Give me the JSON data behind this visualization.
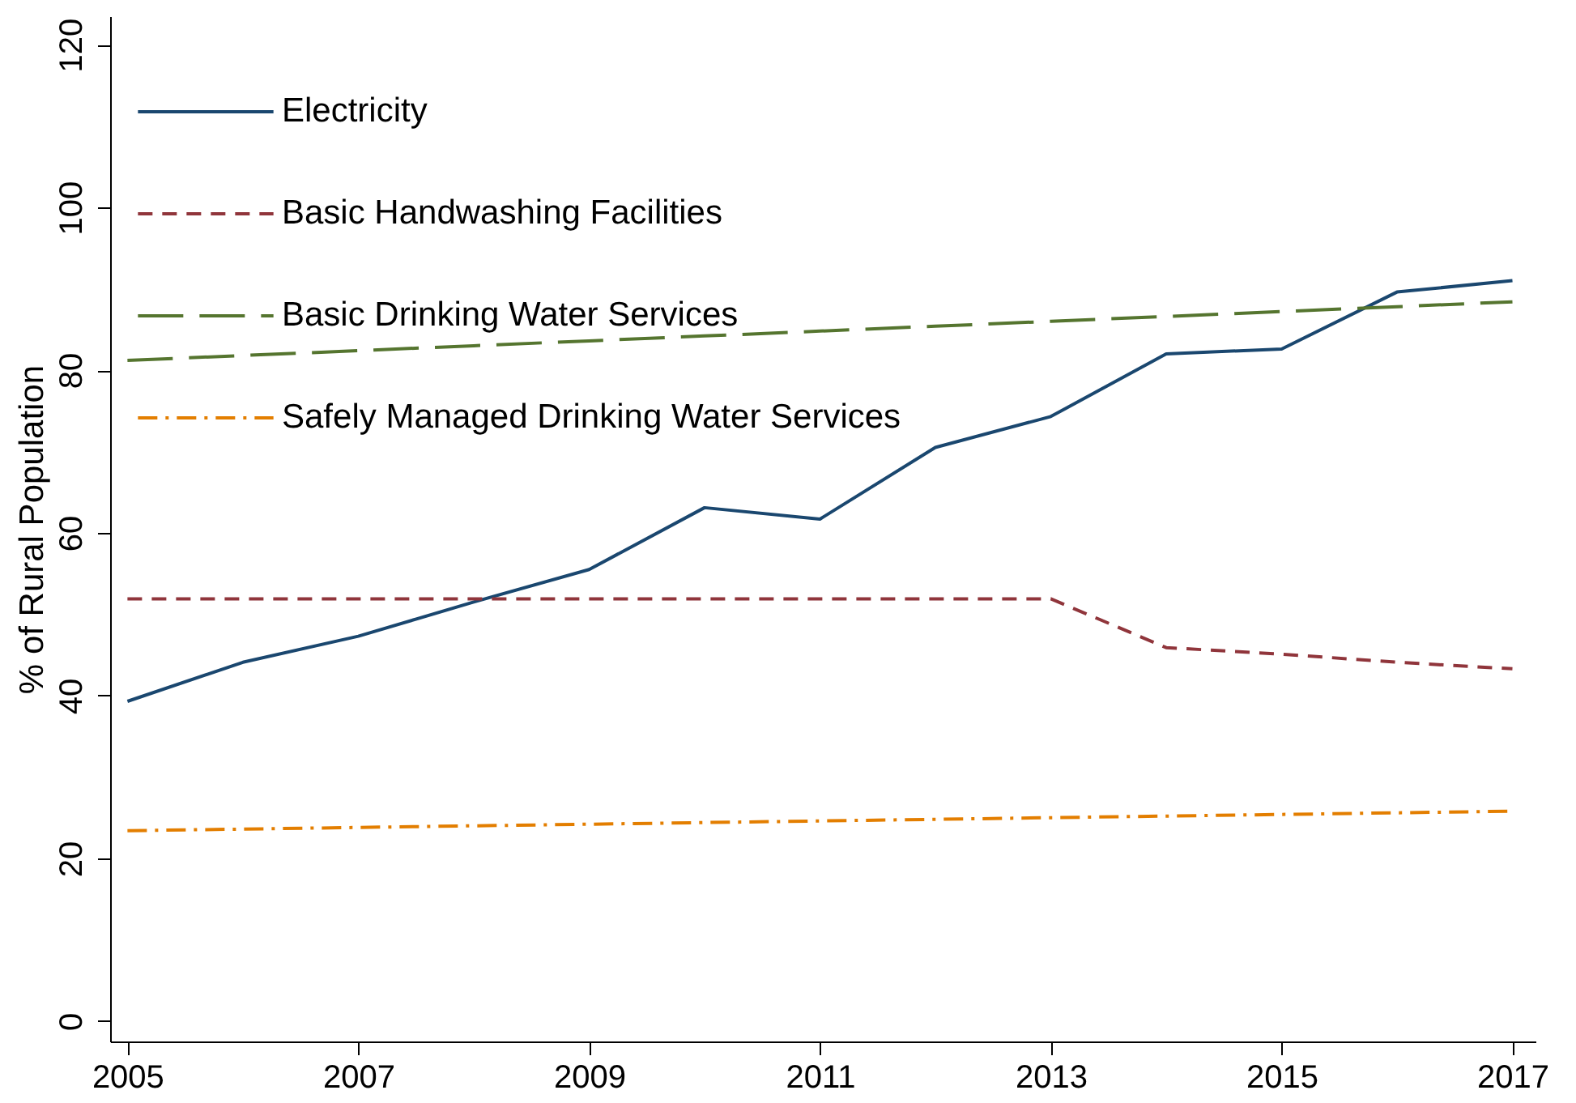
{
  "chart_data": {
    "type": "line",
    "ylabel": "% of Rural Population",
    "x": [
      2005,
      2006,
      2007,
      2008,
      2009,
      2010,
      2011,
      2012,
      2013,
      2014,
      2015,
      2016,
      2017
    ],
    "xlim": [
      2004.85,
      2017.2
    ],
    "xticks": [
      2005,
      2007,
      2009,
      2011,
      2013,
      2015,
      2017
    ],
    "ylim": [
      -2.5,
      123.5
    ],
    "yticks": [
      0,
      20,
      40,
      60,
      80,
      100,
      120
    ],
    "grid": false,
    "legend": "top left",
    "marker": "none",
    "series": [
      {
        "name": "Electricity",
        "color": "#1a476f",
        "line_style": "solid",
        "values": [
          39.3,
          44.1,
          47.3,
          51.5,
          55.5,
          63.1,
          61.7,
          70.5,
          74.3,
          82.0,
          82.6,
          89.6,
          91.0
        ]
      },
      {
        "name": "Basic Handwashing Facilities",
        "color": "#90353b",
        "line_style": "dashed",
        "values": [
          51.9,
          51.9,
          51.9,
          51.9,
          51.9,
          51.9,
          51.9,
          51.9,
          51.9,
          45.9,
          45.1,
          44.1,
          43.3
        ]
      },
      {
        "name": "Basic Drinking Water Services",
        "color": "#55752f",
        "line_style": "longdash",
        "values": [
          81.2,
          81.8,
          82.4,
          83.0,
          83.6,
          84.2,
          84.8,
          85.4,
          86.0,
          86.6,
          87.2,
          87.8,
          88.4
        ]
      },
      {
        "name": "Safely Managed Drinking Water Services",
        "color": "#e37e00",
        "line_style": "dashdot",
        "values": [
          23.4,
          23.6,
          23.8,
          24.0,
          24.2,
          24.4,
          24.6,
          24.8,
          25.0,
          25.2,
          25.4,
          25.6,
          25.8
        ]
      }
    ]
  }
}
